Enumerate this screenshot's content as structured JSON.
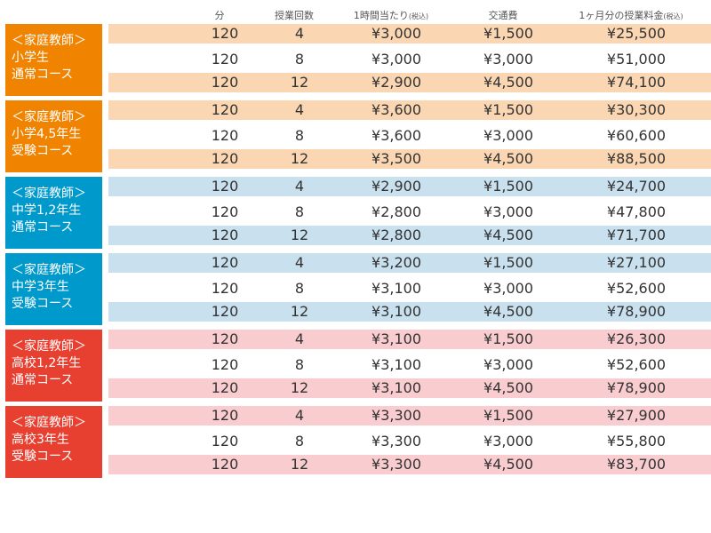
{
  "header": {
    "minutes": "分",
    "lessons": "授業回数",
    "per_hour": "1時間当たり",
    "per_hour_note": "(税込)",
    "transport": "交通費",
    "monthly": "1ヶ月分の授業料金",
    "monthly_note": "(税込)"
  },
  "colors": {
    "orange": "#f08300",
    "orange_band": "#fbd6b2",
    "blue": "#0099cc",
    "blue_band": "#c9e0ee",
    "red": "#e84030",
    "red_band": "#f9ccd0"
  },
  "groups": [
    {
      "label": [
        "＜家庭教師＞",
        "小学生",
        "通常コース"
      ],
      "color": "#f08300",
      "band": "#fbd6b2",
      "rows": [
        {
          "minutes": "120",
          "lessons": "4",
          "per_hour": "¥3,000",
          "transport": "¥1,500",
          "monthly": "¥25,500"
        },
        {
          "minutes": "120",
          "lessons": "8",
          "per_hour": "¥3,000",
          "transport": "¥3,000",
          "monthly": "¥51,000"
        },
        {
          "minutes": "120",
          "lessons": "12",
          "per_hour": "¥2,900",
          "transport": "¥4,500",
          "monthly": "¥74,100"
        }
      ]
    },
    {
      "label": [
        "＜家庭教師＞",
        "小学4,5年生",
        "受験コース"
      ],
      "color": "#f08300",
      "band": "#fbd6b2",
      "rows": [
        {
          "minutes": "120",
          "lessons": "4",
          "per_hour": "¥3,600",
          "transport": "¥1,500",
          "monthly": "¥30,300"
        },
        {
          "minutes": "120",
          "lessons": "8",
          "per_hour": "¥3,600",
          "transport": "¥3,000",
          "monthly": "¥60,600"
        },
        {
          "minutes": "120",
          "lessons": "12",
          "per_hour": "¥3,500",
          "transport": "¥4,500",
          "monthly": "¥88,500"
        }
      ]
    },
    {
      "label": [
        "＜家庭教師＞",
        "中学1,2年生",
        "通常コース"
      ],
      "color": "#0099cc",
      "band": "#c9e0ee",
      "rows": [
        {
          "minutes": "120",
          "lessons": "4",
          "per_hour": "¥2,900",
          "transport": "¥1,500",
          "monthly": "¥24,700"
        },
        {
          "minutes": "120",
          "lessons": "8",
          "per_hour": "¥2,800",
          "transport": "¥3,000",
          "monthly": "¥47,800"
        },
        {
          "minutes": "120",
          "lessons": "12",
          "per_hour": "¥2,800",
          "transport": "¥4,500",
          "monthly": "¥71,700"
        }
      ]
    },
    {
      "label": [
        "＜家庭教師＞",
        "中学3年生",
        "受験コース"
      ],
      "color": "#0099cc",
      "band": "#c9e0ee",
      "rows": [
        {
          "minutes": "120",
          "lessons": "4",
          "per_hour": "¥3,200",
          "transport": "¥1,500",
          "monthly": "¥27,100"
        },
        {
          "minutes": "120",
          "lessons": "8",
          "per_hour": "¥3,100",
          "transport": "¥3,000",
          "monthly": "¥52,600"
        },
        {
          "minutes": "120",
          "lessons": "12",
          "per_hour": "¥3,100",
          "transport": "¥4,500",
          "monthly": "¥78,900"
        }
      ]
    },
    {
      "label": [
        "＜家庭教師＞",
        "高校1,2年生",
        "通常コース"
      ],
      "color": "#e84030",
      "band": "#f9ccd0",
      "rows": [
        {
          "minutes": "120",
          "lessons": "4",
          "per_hour": "¥3,100",
          "transport": "¥1,500",
          "monthly": "¥26,300"
        },
        {
          "minutes": "120",
          "lessons": "8",
          "per_hour": "¥3,100",
          "transport": "¥3,000",
          "monthly": "¥52,600"
        },
        {
          "minutes": "120",
          "lessons": "12",
          "per_hour": "¥3,100",
          "transport": "¥4,500",
          "monthly": "¥78,900"
        }
      ]
    },
    {
      "label": [
        "＜家庭教師＞",
        "高校3年生",
        "受験コース"
      ],
      "color": "#e84030",
      "band": "#f9ccd0",
      "rows": [
        {
          "minutes": "120",
          "lessons": "4",
          "per_hour": "¥3,300",
          "transport": "¥1,500",
          "monthly": "¥27,900"
        },
        {
          "minutes": "120",
          "lessons": "8",
          "per_hour": "¥3,300",
          "transport": "¥3,000",
          "monthly": "¥55,800"
        },
        {
          "minutes": "120",
          "lessons": "12",
          "per_hour": "¥3,300",
          "transport": "¥4,500",
          "monthly": "¥83,700"
        }
      ]
    }
  ]
}
